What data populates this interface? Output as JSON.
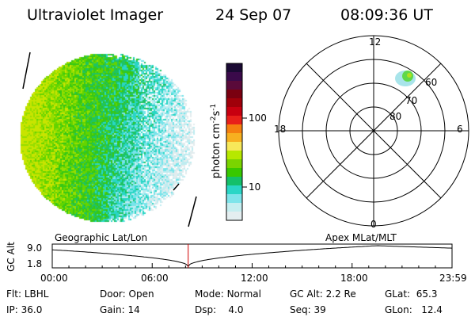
{
  "header": {
    "title": "Ultraviolet Imager",
    "date": "24 Sep 07",
    "time": "08:09:36 UT"
  },
  "colorbar": {
    "label": "photon cm",
    "label_exp1": "-2",
    "label_mid": "s",
    "label_exp2": "-1",
    "tick_high": "100",
    "tick_low": "10",
    "colors": [
      "#1a0a33",
      "#3a0a4a",
      "#5a0a3a",
      "#7a0010",
      "#a0000a",
      "#c80010",
      "#e8201a",
      "#f57f10",
      "#f7b020",
      "#f7e85a",
      "#b7e800",
      "#7ad400",
      "#38c800",
      "#14c06a",
      "#2ad6c6",
      "#7ee4ea",
      "#c5eef0",
      "#e4eef0"
    ]
  },
  "polar": {
    "label_top": "12",
    "label_left": "18",
    "label_right": "6",
    "label_bottom": "0",
    "label_60": "60",
    "label_70": "70",
    "label_80": "80"
  },
  "timeline": {
    "left_label": "Geographic Lat/Lon",
    "right_label": "Apex MLat/MLT",
    "y_title": "GC Alt",
    "y_top": "9.0",
    "y_bottom": "1.8",
    "ticks": [
      "00:00",
      "06:00",
      "12:00",
      "18:00",
      "23:59"
    ],
    "marker_hour": 8.16
  },
  "info": {
    "flt_label": "Flt:",
    "flt_value": "LBHL",
    "ip_label": "IP:",
    "ip_value": "36.0",
    "door_label": "Door:",
    "door_value": "Open",
    "gain_label": "Gain:",
    "gain_value": "14",
    "mode_label": "Mode:",
    "mode_value": "Normal",
    "dsp_label": "Dsp:",
    "dsp_value": "4.0",
    "gcalt_label": "GC Alt:",
    "gcalt_value": "2.2 Re",
    "seq_label": "Seq:",
    "seq_value": "39",
    "glat_label": "GLat:",
    "glat_value": "65.3",
    "glon_label": "GLon:",
    "glon_value": "12.4"
  }
}
